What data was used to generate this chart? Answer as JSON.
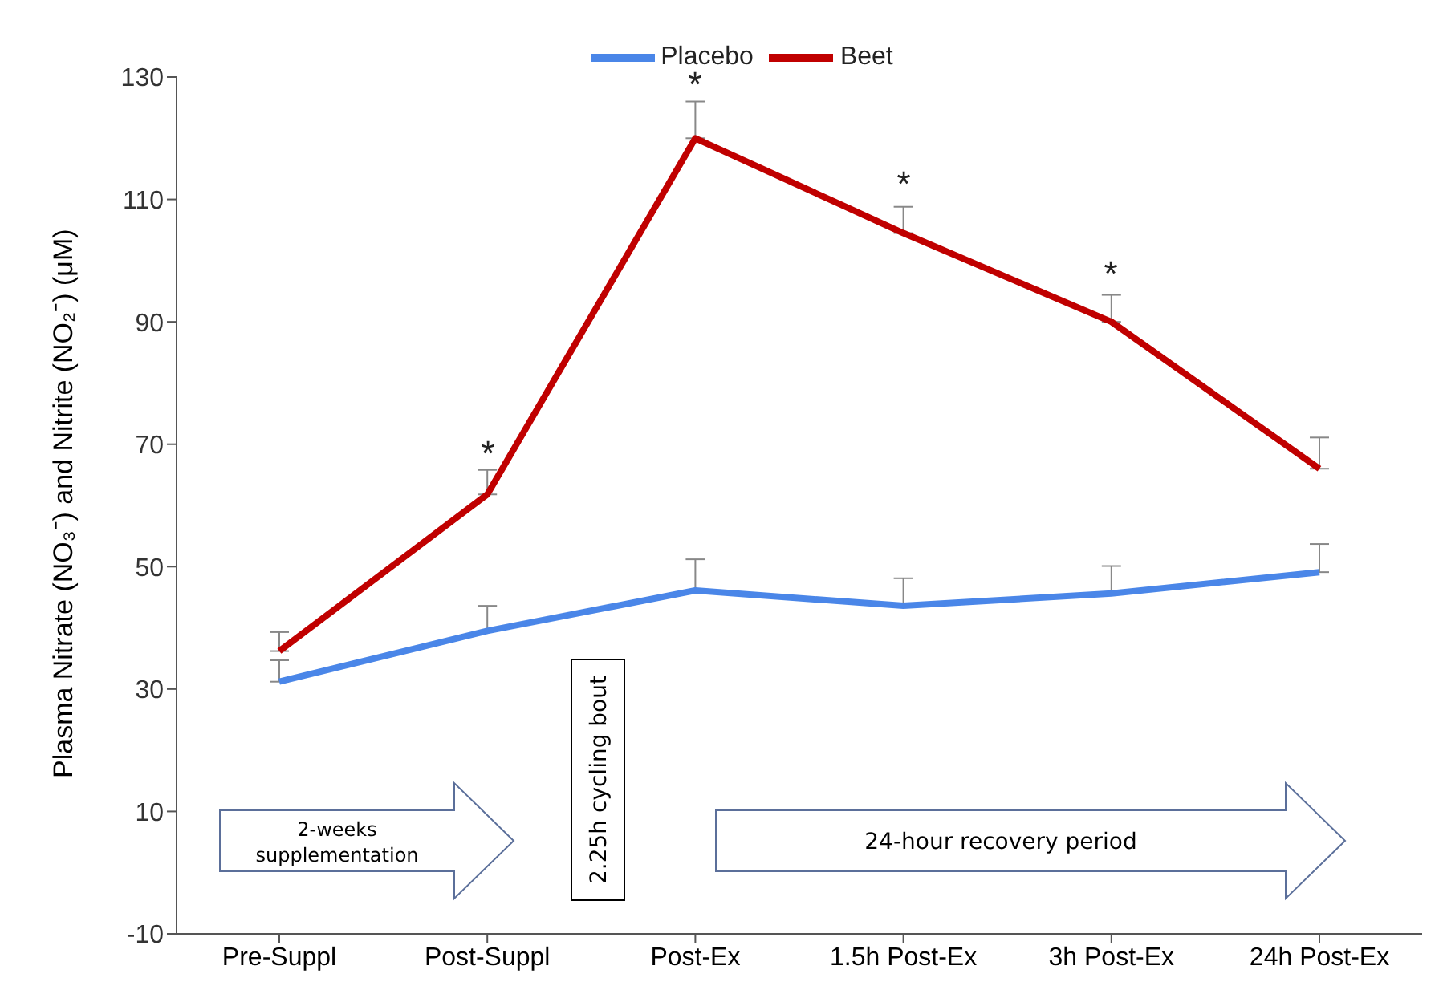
{
  "chart_data": {
    "type": "line",
    "ylabel": "Plasma Nitrate  (NO₃⁻) and Nitrite (NO₂⁻) (μM)",
    "categories": [
      "Pre-Suppl",
      "Post-Suppl",
      "Post-Ex",
      "1.5h Post-Ex",
      "3h Post-Ex",
      "24h Post-Ex"
    ],
    "series": [
      {
        "name": "Placebo",
        "color": "#4a86e8",
        "values": [
          31.2,
          39.5,
          46.1,
          43.6,
          45.6,
          49.1
        ],
        "errors": [
          [
            31.2,
            34.7
          ],
          [
            39.5,
            43.6
          ],
          [
            46.1,
            51.2
          ],
          [
            43.6,
            48.1
          ],
          [
            45.6,
            50.1
          ],
          [
            49.1,
            53.7
          ]
        ]
      },
      {
        "name": "Beet",
        "color": "#c00000",
        "values": [
          36.2,
          61.8,
          120,
          104.5,
          90,
          66
        ],
        "errors": [
          [
            36.2,
            39.3
          ],
          [
            61.8,
            65.8
          ],
          [
            120,
            126
          ],
          [
            104.5,
            108.8
          ],
          [
            90,
            94.4
          ],
          [
            66,
            71.1
          ]
        ]
      }
    ],
    "ylim": [
      -10,
      130
    ],
    "yticks": [
      -10,
      10,
      30,
      50,
      70,
      90,
      110,
      130
    ],
    "legend": "top",
    "grid": false,
    "marker": "none",
    "line_style": "solid",
    "annotations": [
      "*",
      "*",
      "*",
      "*",
      "2-weeks supplementation",
      "2.25h cycling bout",
      "24-hour recovery period"
    ]
  }
}
